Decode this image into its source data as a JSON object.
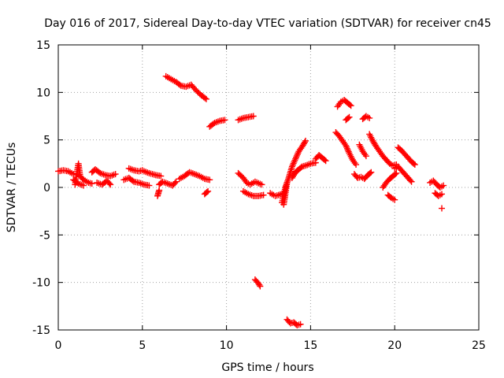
{
  "chart_data": {
    "type": "scatter",
    "title": "Day 016 of 2017, Sidereal Day-to-day VTEC variation (SDTVAR) for receiver cn45",
    "xlabel": "GPS time / hours",
    "ylabel": "SDTVAR / TECUs",
    "xlim": [
      0,
      25
    ],
    "ylim": [
      -15,
      15
    ],
    "xticks": [
      "0",
      "5",
      "10",
      "15",
      "20",
      "25"
    ],
    "yticks": [
      "-15",
      "-10",
      "-5",
      "0",
      "5",
      "10",
      "15"
    ],
    "grid": true,
    "marker": "+",
    "series_color": "#ff0000",
    "segments": [
      {
        "x": [
          0.0,
          0.3,
          0.6,
          0.9
        ],
        "y": [
          1.7,
          1.8,
          1.7,
          1.4
        ]
      },
      {
        "x": [
          1.0,
          1.1,
          1.2,
          1.3,
          1.5,
          1.8,
          2.0
        ],
        "y": [
          0.3,
          1.5,
          2.5,
          1.2,
          0.8,
          0.5,
          0.4
        ]
      },
      {
        "x": [
          0.9,
          1.2,
          1.5
        ],
        "y": [
          0.8,
          0.4,
          0.2
        ]
      },
      {
        "x": [
          2.0,
          2.2,
          2.5,
          2.8,
          3.1,
          3.4
        ],
        "y": [
          1.6,
          1.9,
          1.5,
          1.3,
          1.2,
          1.4
        ]
      },
      {
        "x": [
          2.3,
          2.6,
          2.9,
          3.1
        ],
        "y": [
          0.5,
          0.3,
          0.7,
          0.3
        ]
      },
      {
        "x": [
          3.9,
          4.2,
          4.5,
          4.8,
          5.1,
          5.4
        ],
        "y": [
          0.8,
          1.0,
          0.6,
          0.5,
          0.3,
          0.2
        ]
      },
      {
        "x": [
          4.2,
          4.5,
          4.8,
          5.0
        ],
        "y": [
          2.0,
          1.8,
          1.7,
          1.8
        ]
      },
      {
        "x": [
          5.1,
          5.4,
          5.8,
          6.1
        ],
        "y": [
          1.7,
          1.5,
          1.3,
          1.2
        ]
      },
      {
        "x": [
          6.0,
          6.2,
          6.5,
          6.8,
          7.0
        ],
        "y": [
          0.3,
          0.6,
          0.4,
          0.2,
          0.6
        ]
      },
      {
        "x": [
          5.9,
          6.0
        ],
        "y": [
          -0.9,
          -0.3
        ]
      },
      {
        "x": [
          6.4,
          6.7,
          7.0,
          7.3,
          7.6,
          7.9,
          8.2,
          8.5,
          8.8
        ],
        "y": [
          11.7,
          11.4,
          11.1,
          10.7,
          10.6,
          10.8,
          10.2,
          9.7,
          9.3
        ]
      },
      {
        "x": [
          7.2,
          7.5,
          7.8,
          8.1,
          8.4,
          8.7,
          9.0
        ],
        "y": [
          0.9,
          1.2,
          1.6,
          1.4,
          1.2,
          0.9,
          0.8
        ]
      },
      {
        "x": [
          8.7,
          8.9
        ],
        "y": [
          -0.7,
          -0.4
        ]
      },
      {
        "x": [
          9.0,
          9.3,
          9.6,
          9.9
        ],
        "y": [
          6.4,
          6.8,
          7.0,
          7.1
        ]
      },
      {
        "x": [
          10.7,
          11.0,
          11.3,
          11.6
        ],
        "y": [
          7.1,
          7.3,
          7.4,
          7.5
        ]
      },
      {
        "x": [
          10.7,
          11.0,
          11.2,
          11.4,
          11.7,
          12.1
        ],
        "y": [
          1.5,
          1.0,
          0.5,
          0.3,
          0.6,
          0.3
        ]
      },
      {
        "x": [
          11.0,
          11.3,
          11.6,
          11.9,
          12.2
        ],
        "y": [
          -0.4,
          -0.7,
          -0.9,
          -0.9,
          -0.8
        ]
      },
      {
        "x": [
          11.7,
          11.9,
          12.0
        ],
        "y": [
          -9.7,
          -10.1,
          -10.4
        ]
      },
      {
        "x": [
          12.6,
          12.9,
          13.1,
          13.4
        ],
        "y": [
          -0.6,
          -0.9,
          -0.8,
          -0.6
        ]
      },
      {
        "x": [
          13.3,
          13.5,
          13.7,
          13.9,
          14.1,
          14.3,
          14.5,
          14.7
        ],
        "y": [
          -1.6,
          0.0,
          1.0,
          2.2,
          3.0,
          3.8,
          4.3,
          4.9
        ]
      },
      {
        "x": [
          13.4,
          13.5,
          13.6
        ],
        "y": [
          -1.8,
          -0.7,
          0.5
        ]
      },
      {
        "x": [
          13.9,
          14.1,
          14.3,
          14.5,
          14.7,
          15.0,
          15.3
        ],
        "y": [
          1.0,
          1.6,
          1.9,
          2.2,
          2.3,
          2.5,
          2.6
        ]
      },
      {
        "x": [
          13.6,
          13.8,
          14.0,
          14.2,
          14.4
        ],
        "y": [
          -13.9,
          -14.3,
          -14.2,
          -14.5,
          -14.4
        ]
      },
      {
        "x": [
          15.3,
          15.5,
          15.7,
          15.9
        ],
        "y": [
          3.0,
          3.4,
          3.1,
          2.8
        ]
      },
      {
        "x": [
          16.5,
          16.7,
          16.9,
          17.1,
          17.3,
          17.5,
          17.7
        ],
        "y": [
          5.8,
          5.4,
          4.9,
          4.4,
          3.6,
          2.9,
          2.4
        ]
      },
      {
        "x": [
          16.6,
          16.8,
          17.0,
          17.2,
          17.4
        ],
        "y": [
          8.5,
          9.0,
          9.2,
          8.9,
          8.6
        ]
      },
      {
        "x": [
          17.1,
          17.3
        ],
        "y": [
          7.1,
          7.4
        ]
      },
      {
        "x": [
          17.6,
          17.8,
          18.0,
          18.2,
          18.4,
          18.6
        ],
        "y": [
          1.4,
          1.0,
          1.1,
          0.9,
          1.3,
          1.6
        ]
      },
      {
        "x": [
          17.9,
          18.1,
          18.3
        ],
        "y": [
          4.5,
          3.8,
          3.3
        ]
      },
      {
        "x": [
          18.1,
          18.3,
          18.5
        ],
        "y": [
          7.2,
          7.5,
          7.3
        ]
      },
      {
        "x": [
          18.5,
          18.7,
          18.9,
          19.1,
          19.3,
          19.5,
          19.7,
          19.9,
          20.1
        ],
        "y": [
          5.6,
          4.9,
          4.3,
          3.8,
          3.3,
          2.9,
          2.5,
          2.3,
          2.4
        ]
      },
      {
        "x": [
          19.3,
          19.5,
          19.7,
          19.9,
          20.1
        ],
        "y": [
          0.0,
          0.5,
          0.9,
          1.2,
          1.5
        ]
      },
      {
        "x": [
          19.6,
          19.8,
          20.0
        ],
        "y": [
          -0.8,
          -1.1,
          -1.3
        ]
      },
      {
        "x": [
          20.0,
          20.2,
          20.4,
          20.6,
          20.8,
          21.0
        ],
        "y": [
          2.0,
          2.2,
          1.8,
          1.4,
          1.0,
          0.6
        ]
      },
      {
        "x": [
          20.2,
          20.4,
          20.6,
          20.8,
          21.0,
          21.2
        ],
        "y": [
          4.2,
          3.9,
          3.5,
          3.1,
          2.7,
          2.4
        ]
      },
      {
        "x": [
          22.1,
          22.3,
          22.5,
          22.7,
          22.9
        ],
        "y": [
          0.5,
          0.7,
          0.3,
          0.0,
          0.2
        ]
      },
      {
        "x": [
          22.4,
          22.6,
          22.8
        ],
        "y": [
          -0.6,
          -0.9,
          -0.7
        ]
      },
      {
        "x": [
          22.8
        ],
        "y": [
          -2.2
        ]
      }
    ]
  }
}
